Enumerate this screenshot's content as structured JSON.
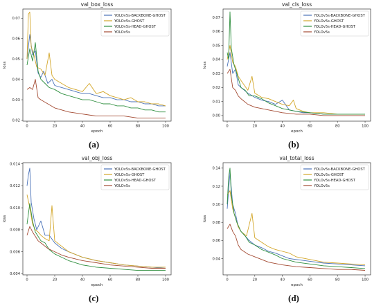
{
  "colors": {
    "YOLOv5s-BACKBONE-GHOST": "#4a72b8",
    "YOLOv5s-GHOST": "#d3a629",
    "YOLOv5s-HEAD-GHOST": "#2f8f3f",
    "YOLOv5s": "#a34a32"
  },
  "panel_labels": [
    "(a)",
    "(b)",
    "(c)",
    "(d)"
  ],
  "chart_data": [
    {
      "type": "line",
      "title": "val_box_loss",
      "xlabel": "epoch",
      "ylabel": "loss",
      "xlim": [
        -3,
        104
      ],
      "ylim": [
        0.0195,
        0.0745
      ],
      "xticks": [
        0,
        20,
        40,
        60,
        80,
        100
      ],
      "yticks": [
        0.02,
        0.03,
        0.04,
        0.05,
        0.06,
        0.07
      ],
      "ytick_labels": [
        "0.02",
        "0.03",
        "0.04",
        "0.05",
        "0.06",
        "0.07"
      ],
      "legend": "top-right",
      "series": [
        {
          "name": "YOLOv5s-BACKBONE-GHOST",
          "x": [
            0,
            2,
            4,
            6,
            8,
            10,
            12,
            15,
            18,
            20,
            25,
            30,
            35,
            40,
            45,
            50,
            55,
            60,
            65,
            70,
            75,
            80,
            85,
            90,
            95,
            100
          ],
          "y": [
            0.05,
            0.062,
            0.052,
            0.054,
            0.043,
            0.041,
            0.044,
            0.038,
            0.04,
            0.037,
            0.036,
            0.035,
            0.034,
            0.033,
            0.033,
            0.032,
            0.031,
            0.031,
            0.03,
            0.03,
            0.029,
            0.029,
            0.028,
            0.028,
            0.027,
            0.027
          ]
        },
        {
          "name": "YOLOv5s-GHOST",
          "x": [
            0,
            1,
            2,
            3,
            5,
            7,
            10,
            13,
            16,
            18,
            20,
            25,
            30,
            35,
            40,
            45,
            50,
            55,
            60,
            65,
            70,
            75,
            80,
            85,
            90,
            95,
            100
          ],
          "y": [
            0.05,
            0.072,
            0.073,
            0.056,
            0.052,
            0.046,
            0.045,
            0.042,
            0.053,
            0.042,
            0.04,
            0.038,
            0.036,
            0.035,
            0.034,
            0.038,
            0.033,
            0.034,
            0.032,
            0.031,
            0.03,
            0.031,
            0.029,
            0.029,
            0.028,
            0.028,
            0.027
          ]
        },
        {
          "name": "YOLOv5s-HEAD-GHOST",
          "x": [
            0,
            2,
            4,
            6,
            8,
            10,
            13,
            16,
            20,
            25,
            30,
            35,
            40,
            45,
            50,
            55,
            60,
            65,
            70,
            75,
            80,
            85,
            90,
            95,
            100
          ],
          "y": [
            0.047,
            0.055,
            0.049,
            0.058,
            0.044,
            0.04,
            0.038,
            0.036,
            0.035,
            0.033,
            0.032,
            0.031,
            0.03,
            0.03,
            0.029,
            0.028,
            0.028,
            0.027,
            0.027,
            0.026,
            0.026,
            0.025,
            0.025,
            0.024,
            0.024
          ]
        },
        {
          "name": "YOLOv5s",
          "x": [
            0,
            2,
            4,
            6,
            8,
            10,
            15,
            20,
            25,
            30,
            40,
            50,
            60,
            70,
            80,
            90,
            100
          ],
          "y": [
            0.035,
            0.036,
            0.035,
            0.04,
            0.031,
            0.03,
            0.028,
            0.026,
            0.025,
            0.024,
            0.023,
            0.022,
            0.022,
            0.022,
            0.021,
            0.021,
            0.021
          ]
        }
      ]
    },
    {
      "type": "line",
      "title": "val_cls_loss",
      "xlabel": "epoch",
      "ylabel": "loss",
      "xlim": [
        -3,
        104
      ],
      "ylim": [
        -0.004,
        0.076
      ],
      "xticks": [
        0,
        20,
        40,
        60,
        80,
        100
      ],
      "yticks": [
        0.0,
        0.01,
        0.02,
        0.03,
        0.04,
        0.05,
        0.06,
        0.07
      ],
      "ytick_labels": [
        "0.00",
        "0.01",
        "0.02",
        "0.03",
        "0.04",
        "0.05",
        "0.06",
        "0.07"
      ],
      "legend": "top-right",
      "series": [
        {
          "name": "YOLOv5s-BACKBONE-GHOST",
          "x": [
            0,
            2,
            4,
            6,
            8,
            10,
            15,
            20,
            25,
            30,
            35,
            40,
            45,
            50,
            55,
            60,
            70,
            80,
            90,
            100
          ],
          "y": [
            0.035,
            0.045,
            0.03,
            0.033,
            0.022,
            0.02,
            0.016,
            0.013,
            0.011,
            0.01,
            0.008,
            0.011,
            0.004,
            0.003,
            0.002,
            0.002,
            0.001,
            0.001,
            0.001,
            0.001
          ]
        },
        {
          "name": "YOLOv5s-GHOST",
          "x": [
            0,
            2,
            4,
            6,
            8,
            10,
            15,
            18,
            20,
            25,
            30,
            35,
            40,
            45,
            48,
            50,
            55,
            60,
            70,
            80,
            90,
            100
          ],
          "y": [
            0.04,
            0.05,
            0.038,
            0.035,
            0.028,
            0.025,
            0.018,
            0.028,
            0.016,
            0.013,
            0.012,
            0.01,
            0.008,
            0.007,
            0.011,
            0.005,
            0.003,
            0.002,
            0.002,
            0.001,
            0.001,
            0.001
          ]
        },
        {
          "name": "YOLOv5s-HEAD-GHOST",
          "x": [
            0,
            1,
            2,
            3,
            5,
            7,
            10,
            13,
            16,
            20,
            25,
            30,
            35,
            40,
            45,
            50,
            60,
            70,
            80,
            90,
            100
          ],
          "y": [
            0.045,
            0.04,
            0.074,
            0.048,
            0.036,
            0.03,
            0.02,
            0.018,
            0.014,
            0.014,
            0.012,
            0.009,
            0.007,
            0.005,
            0.004,
            0.003,
            0.002,
            0.001,
            0.001,
            0.001,
            0.001
          ]
        },
        {
          "name": "YOLOv5s",
          "x": [
            0,
            2,
            4,
            6,
            8,
            10,
            15,
            20,
            25,
            30,
            40,
            50,
            60,
            70,
            80,
            90,
            100
          ],
          "y": [
            0.03,
            0.033,
            0.02,
            0.018,
            0.014,
            0.012,
            0.008,
            0.006,
            0.005,
            0.004,
            0.002,
            0.001,
            0.001,
            0.0,
            0.0,
            0.0,
            0.0
          ]
        }
      ]
    },
    {
      "type": "line",
      "title": "val_obj_loss",
      "xlabel": "epoch",
      "ylabel": "loss",
      "xlim": [
        -3,
        104
      ],
      "ylim": [
        0.0039,
        0.0141
      ],
      "xticks": [
        0,
        20,
        40,
        60,
        80,
        100
      ],
      "yticks": [
        0.004,
        0.006,
        0.008,
        0.01,
        0.012,
        0.014
      ],
      "ytick_labels": [
        "0.004",
        "0.006",
        "0.008",
        "0.010",
        "0.012",
        "0.014"
      ],
      "legend": "top-right",
      "series": [
        {
          "name": "YOLOv5s-BACKBONE-GHOST",
          "x": [
            0,
            1,
            2,
            3,
            5,
            7,
            10,
            13,
            16,
            20,
            25,
            30,
            40,
            50,
            60,
            70,
            80,
            90,
            100
          ],
          "y": [
            0.012,
            0.013,
            0.0136,
            0.0105,
            0.009,
            0.008,
            0.0088,
            0.0075,
            0.0075,
            0.0068,
            0.0063,
            0.006,
            0.0055,
            0.0052,
            0.005,
            0.0048,
            0.0047,
            0.0046,
            0.0045
          ]
        },
        {
          "name": "YOLOv5s-GHOST",
          "x": [
            0,
            2,
            4,
            6,
            8,
            10,
            13,
            16,
            18,
            20,
            25,
            30,
            40,
            50,
            60,
            70,
            80,
            90,
            100
          ],
          "y": [
            0.0112,
            0.01,
            0.0085,
            0.008,
            0.0078,
            0.0075,
            0.0072,
            0.007,
            0.0102,
            0.007,
            0.0065,
            0.006,
            0.0055,
            0.0052,
            0.005,
            0.0048,
            0.0047,
            0.0046,
            0.0046
          ]
        },
        {
          "name": "YOLOv5s-HEAD-GHOST",
          "x": [
            0,
            2,
            4,
            6,
            8,
            10,
            13,
            16,
            20,
            25,
            30,
            40,
            50,
            60,
            70,
            80,
            90,
            100
          ],
          "y": [
            0.0085,
            0.0104,
            0.0088,
            0.0078,
            0.0074,
            0.007,
            0.0068,
            0.0062,
            0.0058,
            0.0055,
            0.0052,
            0.0048,
            0.0046,
            0.0045,
            0.0044,
            0.0043,
            0.0043,
            0.0043
          ]
        },
        {
          "name": "YOLOv5s",
          "x": [
            0,
            2,
            4,
            6,
            8,
            10,
            15,
            20,
            25,
            30,
            40,
            50,
            60,
            70,
            80,
            90,
            100
          ],
          "y": [
            0.0075,
            0.0083,
            0.0078,
            0.0074,
            0.007,
            0.0068,
            0.0063,
            0.006,
            0.0057,
            0.0055,
            0.0052,
            0.005,
            0.0048,
            0.0047,
            0.0046,
            0.0045,
            0.0045
          ]
        }
      ]
    },
    {
      "type": "line",
      "title": "val_total_loss",
      "xlabel": "epoch",
      "ylabel": "loss",
      "xlim": [
        -3,
        104
      ],
      "ylim": [
        0.022,
        0.146
      ],
      "xticks": [
        0,
        20,
        40,
        60,
        80,
        100
      ],
      "yticks": [
        0.04,
        0.06,
        0.08,
        0.1,
        0.12,
        0.14
      ],
      "ytick_labels": [
        "0.04",
        "0.06",
        "0.08",
        "0.10",
        "0.12",
        "0.14"
      ],
      "legend": "top-right",
      "series": [
        {
          "name": "YOLOv5s-BACKBONE-GHOST",
          "x": [
            0,
            2,
            4,
            6,
            8,
            10,
            13,
            16,
            20,
            25,
            30,
            35,
            40,
            45,
            50,
            60,
            70,
            80,
            90,
            100
          ],
          "y": [
            0.095,
            0.135,
            0.1,
            0.09,
            0.075,
            0.07,
            0.065,
            0.06,
            0.055,
            0.052,
            0.048,
            0.046,
            0.043,
            0.04,
            0.039,
            0.037,
            0.035,
            0.034,
            0.033,
            0.032
          ]
        },
        {
          "name": "YOLOv5s-GHOST",
          "x": [
            0,
            2,
            4,
            6,
            8,
            10,
            14,
            18,
            20,
            25,
            30,
            35,
            40,
            45,
            50,
            60,
            70,
            80,
            90,
            100
          ],
          "y": [
            0.11,
            0.115,
            0.095,
            0.085,
            0.075,
            0.07,
            0.065,
            0.09,
            0.063,
            0.058,
            0.053,
            0.05,
            0.048,
            0.046,
            0.042,
            0.039,
            0.036,
            0.035,
            0.034,
            0.033
          ]
        },
        {
          "name": "YOLOv5s-HEAD-GHOST",
          "x": [
            0,
            1,
            2,
            3,
            5,
            7,
            10,
            13,
            16,
            20,
            25,
            30,
            35,
            40,
            45,
            50,
            60,
            70,
            80,
            90,
            100
          ],
          "y": [
            0.1,
            0.13,
            0.14,
            0.11,
            0.09,
            0.08,
            0.07,
            0.065,
            0.058,
            0.055,
            0.05,
            0.047,
            0.044,
            0.04,
            0.038,
            0.036,
            0.034,
            0.032,
            0.031,
            0.03,
            0.029
          ]
        },
        {
          "name": "YOLOv5s",
          "x": [
            0,
            2,
            4,
            6,
            8,
            10,
            15,
            20,
            25,
            30,
            40,
            50,
            60,
            70,
            80,
            90,
            100
          ],
          "y": [
            0.073,
            0.078,
            0.07,
            0.065,
            0.055,
            0.05,
            0.045,
            0.042,
            0.039,
            0.036,
            0.033,
            0.031,
            0.03,
            0.029,
            0.028,
            0.028,
            0.027
          ]
        }
      ]
    }
  ]
}
